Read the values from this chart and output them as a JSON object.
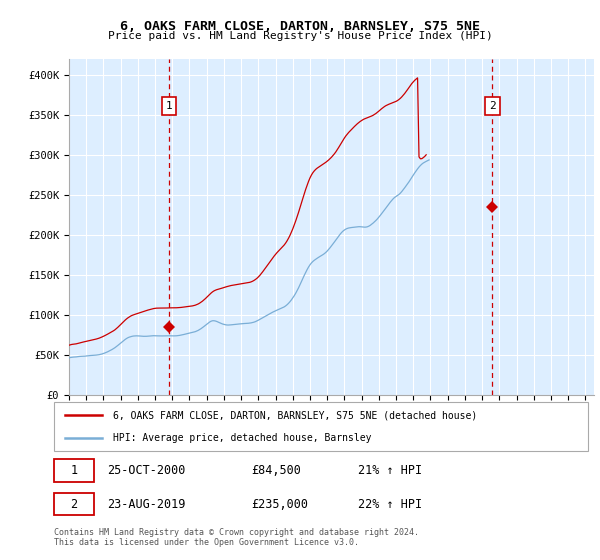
{
  "title": "6, OAKS FARM CLOSE, DARTON, BARNSLEY, S75 5NE",
  "subtitle": "Price paid vs. HM Land Registry's House Price Index (HPI)",
  "ylim": [
    0,
    420000
  ],
  "yticks": [
    0,
    50000,
    100000,
    150000,
    200000,
    250000,
    300000,
    350000,
    400000
  ],
  "ytick_labels": [
    "£0",
    "£50K",
    "£100K",
    "£150K",
    "£200K",
    "£250K",
    "£300K",
    "£350K",
    "£400K"
  ],
  "transaction1": {
    "date": "25-OCT-2000",
    "price": 84500,
    "hpi_pct": "21%",
    "label": "1"
  },
  "transaction2": {
    "date": "23-AUG-2019",
    "price": 235000,
    "hpi_pct": "22%",
    "label": "2"
  },
  "t1_year": 2000.8,
  "t2_year": 2019.6,
  "marker_color": "#cc0000",
  "vline_color": "#cc0000",
  "hpi_line_color": "#7aaed6",
  "price_line_color": "#cc0000",
  "plot_bg_color": "#ddeeff",
  "grid_color": "#ffffff",
  "legend_label_price": "6, OAKS FARM CLOSE, DARTON, BARNSLEY, S75 5NE (detached house)",
  "legend_label_hpi": "HPI: Average price, detached house, Barnsley",
  "footnote": "Contains HM Land Registry data © Crown copyright and database right 2024.\nThis data is licensed under the Open Government Licence v3.0.",
  "hpi_monthly": [
    46115,
    46664,
    46961,
    47132,
    47219,
    47383,
    47683,
    47889,
    48050,
    48137,
    48197,
    48308,
    48524,
    48724,
    48945,
    49097,
    49209,
    49304,
    49443,
    49653,
    49866,
    50148,
    50509,
    51001,
    51616,
    52290,
    53019,
    53817,
    54715,
    55643,
    56614,
    57678,
    58871,
    60221,
    61654,
    63148,
    64657,
    66174,
    67635,
    68985,
    70247,
    71292,
    72076,
    72667,
    73144,
    73467,
    73640,
    73697,
    73666,
    73549,
    73383,
    73218,
    73113,
    73091,
    73146,
    73291,
    73479,
    73666,
    73804,
    73863,
    73843,
    73761,
    73668,
    73603,
    73569,
    73587,
    73634,
    73708,
    73784,
    73817,
    73773,
    73712,
    73666,
    73650,
    73679,
    73780,
    73967,
    74238,
    74577,
    74960,
    75381,
    75815,
    76260,
    76691,
    77094,
    77497,
    77897,
    78349,
    78911,
    79619,
    80475,
    81486,
    82637,
    83918,
    85291,
    86724,
    88166,
    89582,
    90901,
    91944,
    92539,
    92601,
    92279,
    91672,
    90914,
    90073,
    89247,
    88541,
    87999,
    87582,
    87287,
    87188,
    87275,
    87457,
    87684,
    87874,
    88024,
    88175,
    88375,
    88600,
    88807,
    88967,
    89086,
    89186,
    89292,
    89423,
    89627,
    89920,
    90319,
    90836,
    91492,
    92312,
    93265,
    94279,
    95299,
    96333,
    97343,
    98299,
    99260,
    100275,
    101313,
    102333,
    103300,
    104172,
    104984,
    105810,
    106601,
    107338,
    108070,
    108885,
    109867,
    111085,
    112547,
    114270,
    116299,
    118567,
    121070,
    123808,
    126799,
    130072,
    133632,
    137428,
    141393,
    145385,
    149285,
    153027,
    156514,
    159706,
    162484,
    164803,
    166680,
    168168,
    169470,
    170693,
    171893,
    173000,
    174046,
    175163,
    176430,
    177938,
    179701,
    181689,
    183875,
    186173,
    188508,
    190952,
    193436,
    195912,
    198369,
    200697,
    202811,
    204602,
    206016,
    207139,
    207965,
    208507,
    208871,
    209110,
    209300,
    209499,
    209737,
    209986,
    210124,
    210110,
    209930,
    209685,
    209559,
    209624,
    210012,
    210782,
    211835,
    213182,
    214654,
    216260,
    218002,
    219890,
    221997,
    224255,
    226571,
    228894,
    231229,
    233644,
    236116,
    238520,
    240846,
    243045,
    245030,
    246701,
    247943,
    249060,
    250388,
    252055,
    254097,
    256358,
    258741,
    261186,
    263658,
    266211,
    268927,
    271814,
    274659,
    277318,
    279887,
    282379,
    284684,
    286693,
    288393,
    289777,
    290868,
    291797,
    292693,
    293599
  ],
  "price_monthly": [
    62000,
    62500,
    63000,
    63200,
    63400,
    63700,
    64100,
    64600,
    65100,
    65600,
    66000,
    66400,
    66900,
    67300,
    67700,
    68100,
    68500,
    68900,
    69300,
    69700,
    70200,
    70800,
    71500,
    72300,
    73100,
    74000,
    74900,
    75900,
    76900,
    77900,
    78900,
    80000,
    81200,
    82700,
    84300,
    86000,
    87800,
    89600,
    91400,
    93100,
    94700,
    96100,
    97300,
    98400,
    99300,
    100000,
    100600,
    101200,
    101800,
    102400,
    103000,
    103600,
    104200,
    104800,
    105400,
    105900,
    106400,
    106900,
    107400,
    107800,
    108100,
    108300,
    108400,
    108400,
    108400,
    108400,
    108400,
    108400,
    108500,
    108600,
    108700,
    108700,
    108700,
    108700,
    108700,
    108800,
    108900,
    109000,
    109200,
    109400,
    109600,
    109900,
    110200,
    110400,
    110600,
    110800,
    111100,
    111500,
    112000,
    112700,
    113500,
    114500,
    115700,
    117000,
    118500,
    120100,
    121800,
    123600,
    125400,
    127100,
    128600,
    129800,
    130700,
    131400,
    131900,
    132400,
    132900,
    133500,
    134100,
    134700,
    135200,
    135700,
    136200,
    136600,
    136900,
    137200,
    137500,
    137800,
    138100,
    138400,
    138700,
    139000,
    139300,
    139600,
    139900,
    140200,
    140600,
    141200,
    142000,
    143000,
    144200,
    145600,
    147300,
    149200,
    151400,
    153700,
    156100,
    158500,
    161000,
    163500,
    166000,
    168500,
    171000,
    173400,
    175600,
    177700,
    179600,
    181400,
    183200,
    185100,
    187200,
    189600,
    192400,
    195600,
    199100,
    203100,
    207400,
    212100,
    217100,
    222400,
    227900,
    233600,
    239500,
    245400,
    251200,
    256800,
    262000,
    266800,
    271100,
    274700,
    277600,
    279900,
    281800,
    283300,
    284500,
    285700,
    286900,
    288100,
    289300,
    290600,
    292000,
    293500,
    295200,
    297000,
    299000,
    301200,
    303600,
    306300,
    309200,
    312200,
    315200,
    318200,
    321000,
    323600,
    325900,
    328000,
    329900,
    331800,
    333600,
    335400,
    337100,
    338800,
    340300,
    341700,
    342900,
    344000,
    344900,
    345600,
    346300,
    347000,
    347700,
    348500,
    349400,
    350500,
    351700,
    353100,
    354600,
    356200,
    357700,
    359100,
    360400,
    361500,
    362400,
    363200,
    363900,
    364600,
    365300,
    366000,
    366800,
    367800,
    369100,
    370600,
    372400,
    374400,
    376600,
    379000,
    381500,
    384100,
    386700,
    389100,
    391200,
    393100,
    394700,
    396200,
    297400,
    295000,
    295200,
    296500,
    298000,
    300000
  ]
}
